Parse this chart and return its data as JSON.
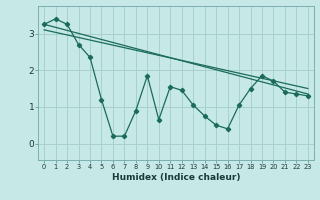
{
  "xlabel": "Humidex (Indice chaleur)",
  "bg_color": "#c6e8e6",
  "grid_color": "#a8d0ce",
  "line_color": "#1a6b5a",
  "xlim": [
    -0.5,
    23.5
  ],
  "ylim": [
    -0.45,
    3.75
  ],
  "xticks": [
    0,
    1,
    2,
    3,
    4,
    5,
    6,
    7,
    8,
    9,
    10,
    11,
    12,
    13,
    14,
    15,
    16,
    17,
    18,
    19,
    20,
    21,
    22,
    23
  ],
  "yticks": [
    0,
    1,
    2,
    3
  ],
  "series1_x": [
    0,
    1,
    2,
    3,
    4,
    5,
    6,
    7,
    8,
    9,
    10,
    11,
    12,
    13,
    14,
    15,
    16,
    17,
    18,
    19,
    20,
    21,
    22,
    23
  ],
  "series1_y": [
    3.25,
    3.4,
    3.25,
    2.7,
    2.35,
    1.2,
    0.2,
    0.2,
    0.9,
    1.85,
    0.65,
    1.55,
    1.45,
    1.05,
    0.75,
    0.5,
    0.4,
    1.05,
    1.5,
    1.85,
    1.7,
    1.4,
    1.35,
    1.3
  ],
  "trend1_x": [
    0,
    23
  ],
  "trend1_y": [
    3.25,
    1.35
  ],
  "trend2_x": [
    0,
    23
  ],
  "trend2_y": [
    3.1,
    1.5
  ]
}
